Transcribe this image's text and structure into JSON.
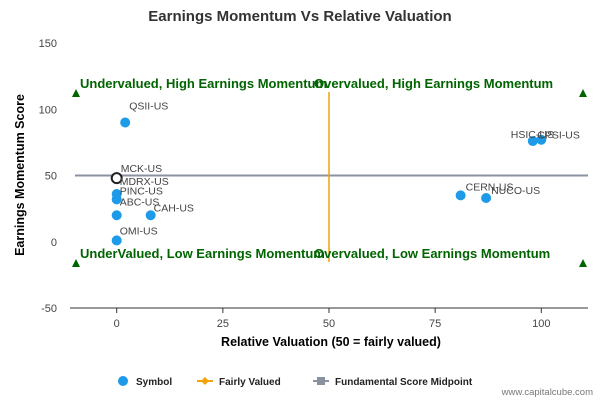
{
  "chart_data": {
    "type": "scatter",
    "title": "Earnings Momentum Vs Relative Valuation",
    "xlabel": "Relative Valuation (50 = fairly valued)",
    "ylabel": "Earnings Momentum Score",
    "xlim": [
      -11,
      111
    ],
    "ylim": [
      -50,
      150
    ],
    "x_ticks": [
      0,
      25,
      50,
      75,
      100
    ],
    "y_ticks": [
      -50,
      0,
      50,
      100,
      150
    ],
    "grid": false,
    "legend_position": "bottom",
    "points": [
      {
        "label": "QSII-US",
        "x": 2,
        "y": 90
      },
      {
        "label": "HSIC-US",
        "x": 98,
        "y": 76
      },
      {
        "label": "CPSI-US",
        "x": 100,
        "y": 77
      },
      {
        "label": "MCK-US",
        "x": 0,
        "y": 48,
        "highlighted": true
      },
      {
        "label": "MDRX-US",
        "x": 0,
        "y": 36
      },
      {
        "label": "PINC-US",
        "x": 0,
        "y": 32
      },
      {
        "label": "ABC-US",
        "x": 0,
        "y": 20
      },
      {
        "label": "CAH-US",
        "x": 8,
        "y": 20
      },
      {
        "label": "OMI-US",
        "x": 0,
        "y": 1
      },
      {
        "label": "CERN-US",
        "x": 81,
        "y": 35
      },
      {
        "label": "NUCO-US",
        "x": 87,
        "y": 33
      }
    ],
    "fairly_valued_x": 50,
    "midpoint_y": 50,
    "quadrant_labels": {
      "top_left": "Undervalued, High Earnings Momentum",
      "top_right": "Overvalued, High Earnings Momentum",
      "bottom_left": "UnderValued, Low Earnings Momentum",
      "bottom_right": "Overvalued, Low Earnings Momentum"
    },
    "legend": [
      {
        "name": "Symbol",
        "color": "#1e9be8"
      },
      {
        "name": "Fairly Valued",
        "color": "#f0a30a"
      },
      {
        "name": "Fundamental Score Midpoint",
        "color": "#8a92a0"
      }
    ],
    "colors": {
      "points": "#1e9be8",
      "fairly_valued": "#f0a30a",
      "midpoint": "#8a92a0",
      "quadrant_text": "#006400",
      "triangles": "#006400",
      "highlight_ring": "#222222"
    }
  },
  "credit": "www.capitalcube.com"
}
